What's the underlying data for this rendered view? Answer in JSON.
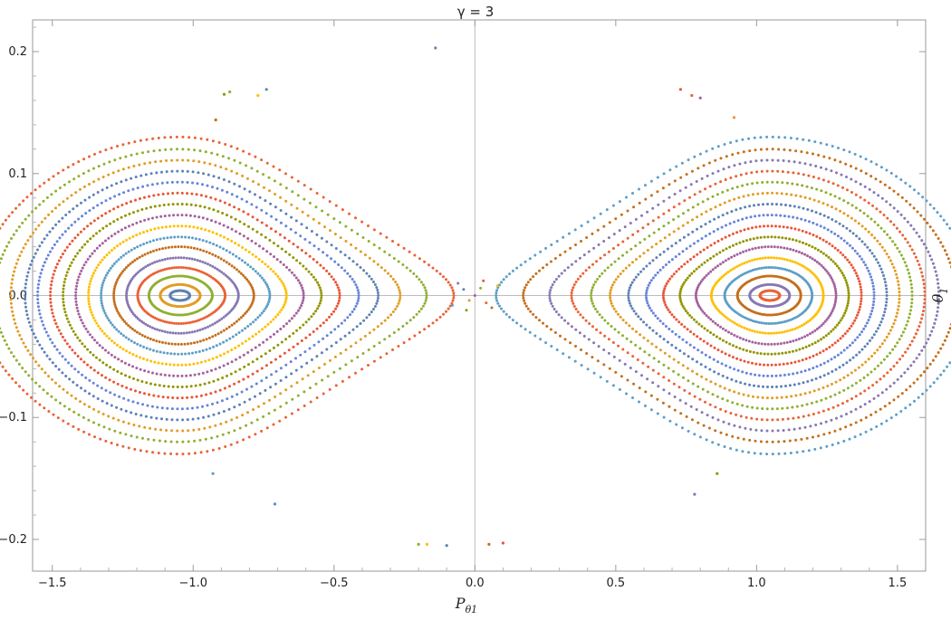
{
  "chart_data": {
    "type": "scatter",
    "title": "γ = 3",
    "xlabel": "P",
    "xlabel_sub": "θ1",
    "ylabel": "θ",
    "ylabel_sub": "1",
    "xlim": [
      -1.57,
      1.6
    ],
    "ylim": [
      -0.226,
      0.226
    ],
    "grid": false,
    "axes_through_origin": true,
    "xticks": [
      -1.5,
      -1.0,
      -0.5,
      0.0,
      0.5,
      1.0,
      1.5
    ],
    "xtick_labels": [
      "-1.5",
      "-1.0",
      "-0.5",
      "0.0",
      "0.5",
      "1.0",
      "1.5"
    ],
    "yticks": [
      -0.2,
      -0.1,
      0.0,
      0.1,
      0.2
    ],
    "ytick_labels": [
      "-0.2",
      "-0.1",
      "0.0",
      "0.1",
      "0.2"
    ],
    "island_centers": [
      [
        -1.047,
        0.0
      ],
      [
        1.047,
        0.0
      ]
    ],
    "palette": [
      "#5E81B5",
      "#E19C24",
      "#8FB032",
      "#EB6235",
      "#8778B3",
      "#C56E1A",
      "#5D9EC7",
      "#FFBF00",
      "#A5609D",
      "#929600",
      "#E95536",
      "#6685D9"
    ],
    "orbit_count_per_island": 16,
    "orbit_shape": "nested closed curves (Poincaré section) around each island center, elongated along P, pinched toward the hyperbolic point at (0, 0)",
    "orbit_half_widths_p": [
      0.035,
      0.07,
      0.11,
      0.15,
      0.19,
      0.235,
      0.28,
      0.325,
      0.37,
      0.415,
      0.46,
      0.505,
      0.55,
      0.6,
      0.66,
      0.72
    ],
    "orbit_half_heights_theta": [
      0.004,
      0.009,
      0.016,
      0.023,
      0.031,
      0.04,
      0.048,
      0.057,
      0.066,
      0.075,
      0.084,
      0.093,
      0.102,
      0.111,
      0.12,
      0.13
    ],
    "stray_points": [
      [
        -0.14,
        0.203
      ],
      [
        -0.89,
        0.165
      ],
      [
        -0.87,
        0.167
      ],
      [
        -0.77,
        0.164
      ],
      [
        -0.74,
        0.169
      ],
      [
        -0.92,
        0.144
      ],
      [
        0.73,
        0.169
      ],
      [
        0.77,
        0.164
      ],
      [
        0.8,
        0.162
      ],
      [
        0.92,
        0.146
      ],
      [
        -0.93,
        -0.146
      ],
      [
        -0.71,
        -0.171
      ],
      [
        0.78,
        -0.163
      ],
      [
        0.86,
        -0.146
      ],
      [
        -0.2,
        -0.204
      ],
      [
        -0.17,
        -0.204
      ],
      [
        -0.1,
        -0.205
      ],
      [
        0.05,
        -0.204
      ],
      [
        0.1,
        -0.203
      ]
    ]
  }
}
